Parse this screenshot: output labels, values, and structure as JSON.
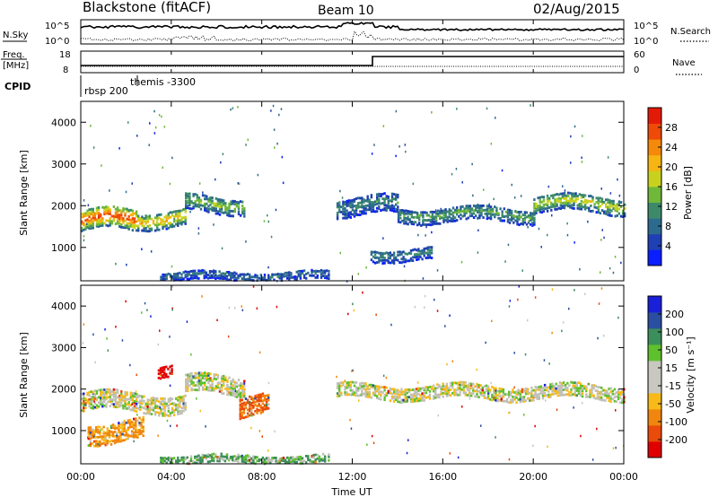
{
  "header": {
    "title": "Blackstone (fitACF)",
    "beam": "Beam 10",
    "date": "02/Aug/2015"
  },
  "top_strip": {
    "left_label": "N.Sky",
    "right_label": "N.Search",
    "left_ticks": [
      "10^5",
      "10^0"
    ],
    "right_ticks": [
      "10^5",
      "10^0"
    ]
  },
  "freq_strip": {
    "left_label_1": "Freq.",
    "left_label_2": "[MHz]",
    "left_ticks": [
      "18",
      "8"
    ],
    "right_label": "Nave",
    "right_ticks": [
      "60",
      "0"
    ]
  },
  "cpid_strip": {
    "label": "CPID",
    "modes": [
      "rbsp 200",
      "themis -3300"
    ]
  },
  "x_axis": {
    "label": "Time UT",
    "ticks": [
      "00:00",
      "04:00",
      "08:00",
      "12:00",
      "16:00",
      "20:00",
      "00:00"
    ]
  },
  "colors": {
    "power_scale": [
      "#0a1fff",
      "#1f3fb5",
      "#2d6b8e",
      "#3d8a6a",
      "#6fb83a",
      "#c8d21e",
      "#f6b512",
      "#f58a0a",
      "#ee4a08",
      "#e41a08"
    ],
    "velocity_scale": [
      "#e00000",
      "#ea4a0a",
      "#f1860e",
      "#f7ba18",
      "#c8c8c0",
      "#c8c8c0",
      "#5fc02d",
      "#3c8e5a",
      "#2a4fa0",
      "#1a20d8"
    ],
    "ground_scatter": "#c0c0b8"
  },
  "chart_data": [
    {
      "type": "heatmap",
      "title": "Power",
      "xlabel": "Time UT",
      "ylabel": "Slant Range [km]",
      "x_range_hours": [
        0,
        24
      ],
      "ylim": [
        200,
        4500
      ],
      "yticks": [
        "1000",
        "2000",
        "3000",
        "4000"
      ],
      "colorbar": {
        "label": "Power [dB]",
        "range": [
          0,
          32
        ],
        "ticks": [
          "4",
          "8",
          "12",
          "16",
          "20",
          "24",
          "28"
        ]
      },
      "echo_bands": [
        {
          "t_start": 0.0,
          "t_end": 2.5,
          "range_center_km": 1650,
          "width_km": 500,
          "power_db": 26
        },
        {
          "t_start": 2.5,
          "t_end": 4.6,
          "range_center_km": 1700,
          "width_km": 400,
          "power_db": 20
        },
        {
          "t_start": 4.6,
          "t_end": 7.2,
          "range_center_km": 2050,
          "width_km": 400,
          "power_db": 14
        },
        {
          "t_start": 11.3,
          "t_end": 14.0,
          "range_center_km": 2000,
          "width_km": 450,
          "power_db": 10
        },
        {
          "t_start": 14.0,
          "t_end": 20.0,
          "range_center_km": 1800,
          "width_km": 350,
          "power_db": 12
        },
        {
          "t_start": 20.0,
          "t_end": 24.0,
          "range_center_km": 2050,
          "width_km": 400,
          "power_db": 16
        },
        {
          "t_start": 12.8,
          "t_end": 15.5,
          "range_center_km": 850,
          "width_km": 300,
          "power_db": 10
        },
        {
          "t_start": 3.5,
          "t_end": 11.0,
          "range_center_km": 330,
          "width_km": 220,
          "power_db": 8
        }
      ]
    },
    {
      "type": "heatmap",
      "title": "Velocity",
      "xlabel": "Time UT",
      "ylabel": "Slant Range [km]",
      "x_range_hours": [
        0,
        24
      ],
      "ylim": [
        200,
        4500
      ],
      "yticks": [
        "1000",
        "2000",
        "3000",
        "4000"
      ],
      "colorbar": {
        "label": "Velocity [m s⁻¹]",
        "range": [
          -250,
          250
        ],
        "ticks": [
          "200",
          "100",
          "50",
          "15",
          "-15",
          "-50",
          "-100",
          "-200"
        ]
      },
      "echo_bands": [
        {
          "t_start": 0.0,
          "t_end": 4.6,
          "range_center_km": 1700,
          "width_km": 450,
          "velocity_ms": 0
        },
        {
          "t_start": 4.6,
          "t_end": 7.2,
          "range_center_km": 2100,
          "width_km": 450,
          "velocity_ms": 0
        },
        {
          "t_start": 3.4,
          "t_end": 4.0,
          "range_center_km": 2400,
          "width_km": 300,
          "velocity_ms": -200
        },
        {
          "t_start": 7.0,
          "t_end": 8.3,
          "range_center_km": 1600,
          "width_km": 500,
          "velocity_ms": -75
        },
        {
          "t_start": 0.3,
          "t_end": 2.8,
          "range_center_km": 1000,
          "width_km": 500,
          "velocity_ms": -40
        },
        {
          "t_start": 11.3,
          "t_end": 24.0,
          "range_center_km": 1950,
          "width_km": 350,
          "velocity_ms": 0
        },
        {
          "t_start": 3.5,
          "t_end": 11.0,
          "range_center_km": 330,
          "width_km": 200,
          "velocity_ms": 30
        }
      ]
    }
  ]
}
